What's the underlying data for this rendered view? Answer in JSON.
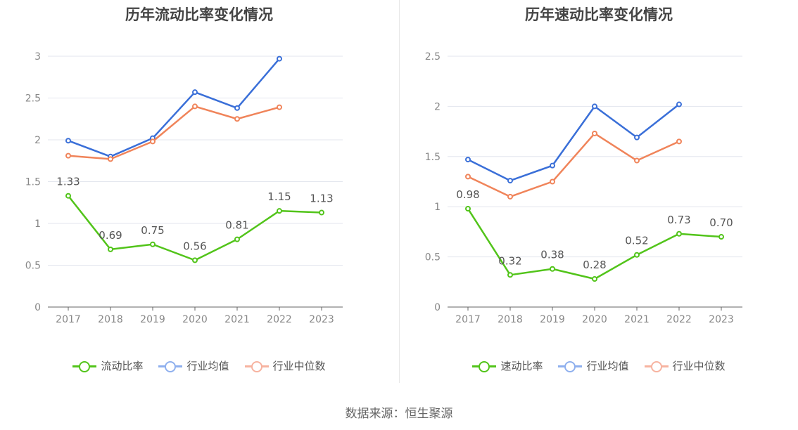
{
  "chart_data": [
    {
      "type": "line",
      "title": "历年流动比率变化情况",
      "categories": [
        "2017",
        "2018",
        "2019",
        "2020",
        "2021",
        "2022",
        "2023"
      ],
      "ylim": [
        0,
        3
      ],
      "yticks": [
        "0",
        "0.5",
        "1",
        "1.5",
        "2",
        "2.5",
        "3"
      ],
      "ytick_values": [
        0,
        0.5,
        1,
        1.5,
        2,
        2.5,
        3
      ],
      "grid": true,
      "legend": "bottom",
      "series": [
        {
          "name": "流动比率",
          "color": "#52c41a",
          "values": [
            1.33,
            0.69,
            0.75,
            0.56,
            0.81,
            1.15,
            1.13
          ],
          "labels": [
            "1.33",
            "0.69",
            "0.75",
            "0.56",
            "0.81",
            "1.15",
            "1.13"
          ]
        },
        {
          "name": "行业均值",
          "color": "#3a6fd8",
          "values": [
            1.99,
            1.8,
            2.02,
            2.57,
            2.38,
            2.97,
            null
          ]
        },
        {
          "name": "行业中位数",
          "color": "#f0845a",
          "values": [
            1.81,
            1.77,
            1.98,
            2.4,
            2.25,
            2.39,
            null
          ]
        }
      ]
    },
    {
      "type": "line",
      "title": "历年速动比率变化情况",
      "categories": [
        "2017",
        "2018",
        "2019",
        "2020",
        "2021",
        "2022",
        "2023"
      ],
      "ylim": [
        0,
        2.5
      ],
      "yticks": [
        "0",
        "0.5",
        "1",
        "1.5",
        "2",
        "2.5"
      ],
      "ytick_values": [
        0,
        0.5,
        1,
        1.5,
        2,
        2.5
      ],
      "grid": true,
      "legend": "bottom",
      "series": [
        {
          "name": "速动比率",
          "color": "#52c41a",
          "values": [
            0.98,
            0.32,
            0.38,
            0.28,
            0.52,
            0.73,
            0.7
          ],
          "labels": [
            "0.98",
            "0.32",
            "0.38",
            "0.28",
            "0.52",
            "0.73",
            "0.70"
          ]
        },
        {
          "name": "行业均值",
          "color": "#3a6fd8",
          "values": [
            1.47,
            1.26,
            1.41,
            2.0,
            1.69,
            2.02,
            null
          ]
        },
        {
          "name": "行业中位数",
          "color": "#f0845a",
          "values": [
            1.3,
            1.1,
            1.25,
            1.73,
            1.46,
            1.65,
            null
          ]
        }
      ]
    }
  ],
  "legend_colors": {
    "primary_ring": "#52c41a",
    "avg_ring": "#8fb0ee",
    "median_ring": "#f7b3a0"
  },
  "source": "数据来源：恒生聚源"
}
